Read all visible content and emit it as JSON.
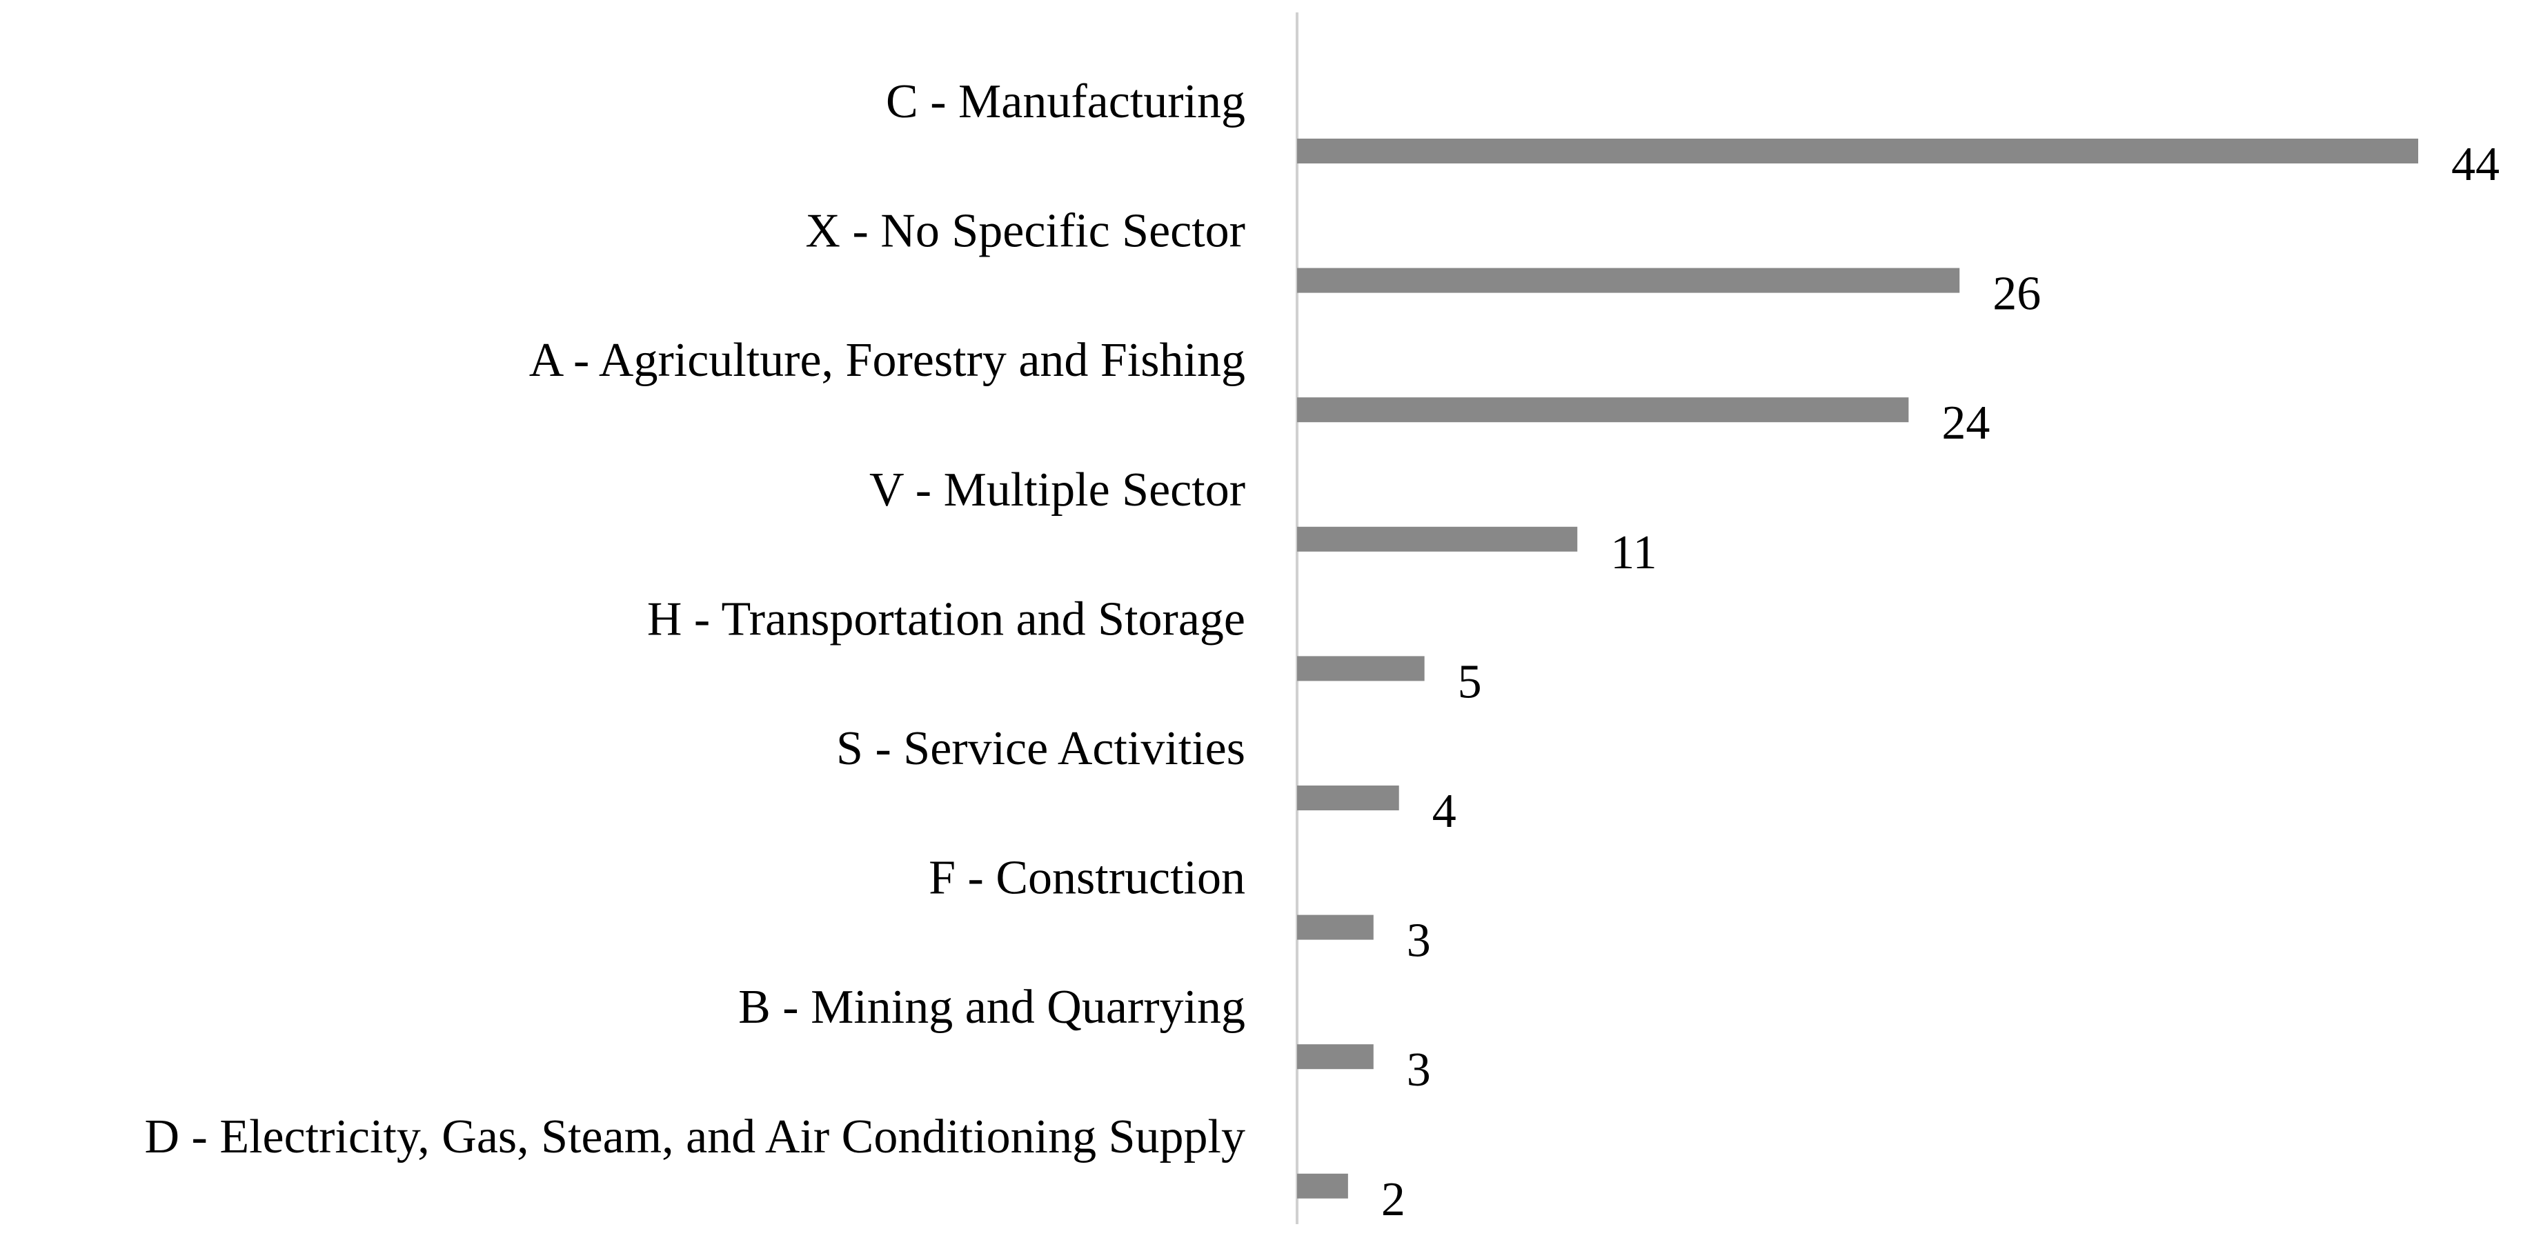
{
  "chart_data": {
    "type": "bar",
    "orientation": "horizontal",
    "categories": [
      "C - Manufacturing",
      "X - No Specific Sector",
      "A - Agriculture, Forestry and Fishing",
      "V - Multiple Sector",
      "H - Transportation and Storage",
      "S - Service Activities",
      "F - Construction",
      "B - Mining and Quarrying",
      "D - Electricity, Gas, Steam, and Air Conditioning Supply"
    ],
    "values": [
      44,
      26,
      24,
      11,
      5,
      4,
      3,
      3,
      2
    ],
    "value_labels": [
      "44",
      "26",
      "24",
      "11",
      "5",
      "4",
      "3",
      "3",
      "2"
    ],
    "xlim": [
      0,
      44
    ],
    "grid": false,
    "legend": "none",
    "bar_color": "#888888",
    "axis_color": "#d0d0d0"
  }
}
